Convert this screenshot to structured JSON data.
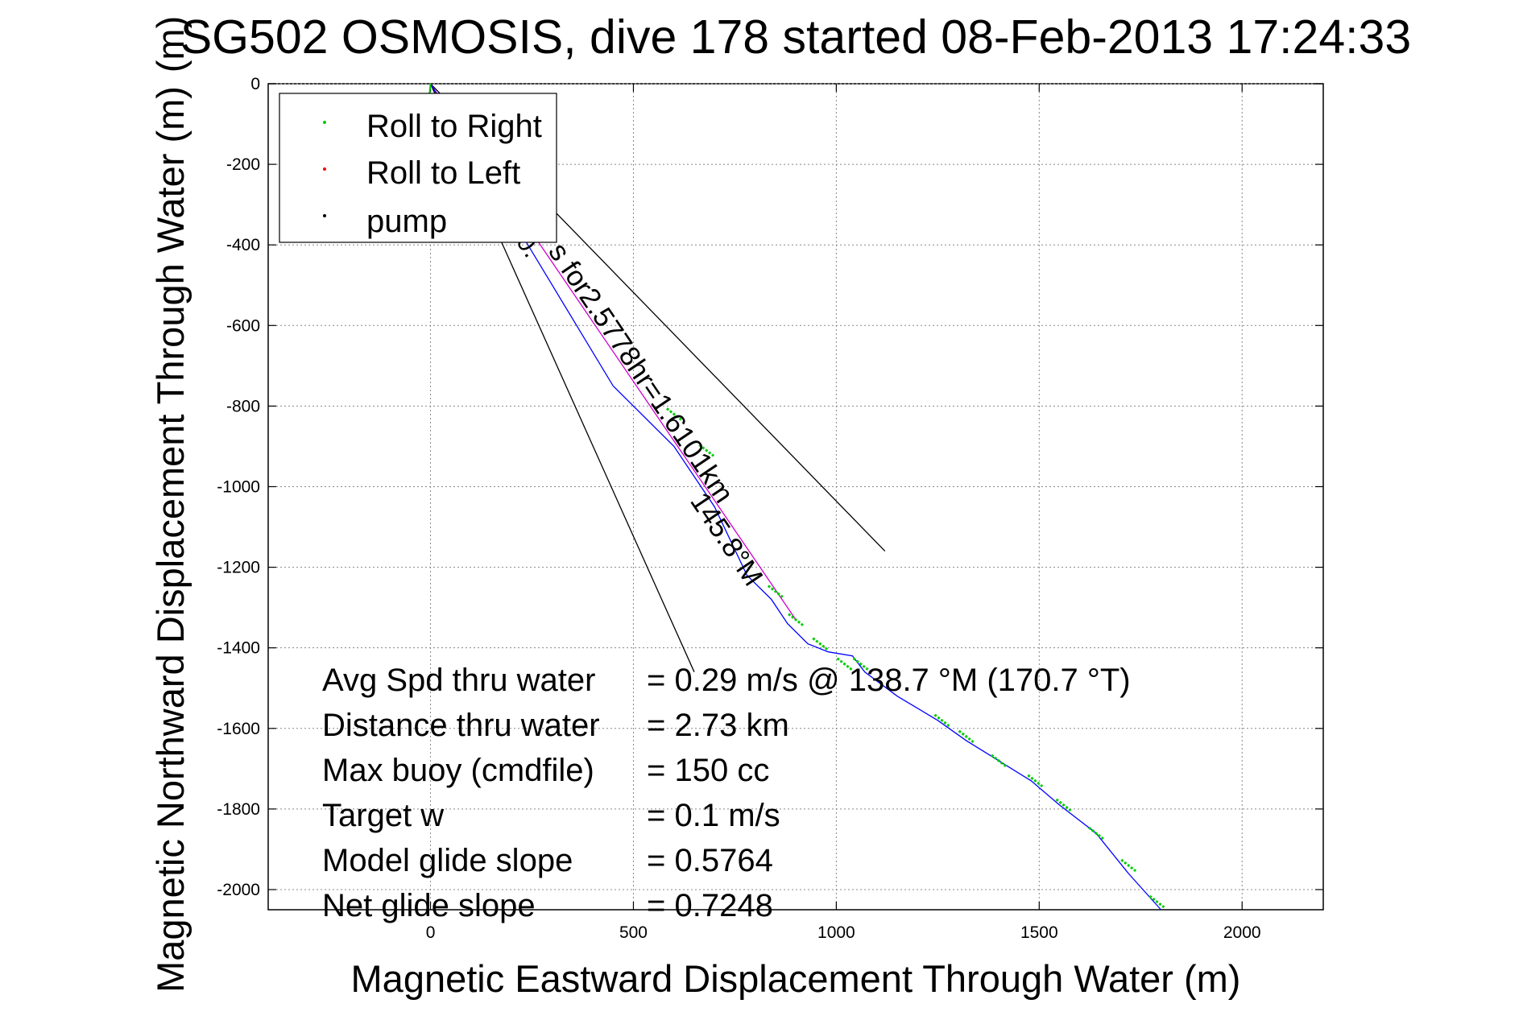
{
  "chart_data": {
    "type": "line",
    "title": "SG502 OSMOSIS, dive 178 started 08-Feb-2013 17:24:33",
    "title_overlap_glyph": "(m)",
    "xlabel": "Magnetic Eastward Displacement Through Water (m)",
    "ylabel": "Magnetic Northward Displacement Through Water (m)",
    "xlim": [
      -400,
      2200
    ],
    "ylim": [
      -2050,
      0
    ],
    "xticks": [
      0,
      500,
      1000,
      1500,
      2000
    ],
    "yticks": [
      0,
      -200,
      -400,
      -600,
      -800,
      -1000,
      -1200,
      -1400,
      -1600,
      -1800,
      -2000
    ],
    "grid": true,
    "legend": {
      "placement": "top-left",
      "entries": [
        {
          "label": "Roll to Right",
          "color": "#00cc00"
        },
        {
          "label": "Roll to Left",
          "color": "#ff0000"
        },
        {
          "label": "pump",
          "color": "#000000"
        }
      ]
    },
    "series": [
      {
        "role": "track",
        "color": "#0000ff",
        "x": [
          0,
          150,
          300,
          450,
          600,
          700,
          780,
          840,
          880,
          930,
          980,
          1040,
          1070,
          1150,
          1250,
          1320,
          1400,
          1480,
          1550,
          1640,
          1720,
          1800
        ],
        "y": [
          0,
          -250,
          -500,
          -750,
          -900,
          -1050,
          -1220,
          -1280,
          -1340,
          -1390,
          -1410,
          -1420,
          -1460,
          -1520,
          -1580,
          -1630,
          -1680,
          -1730,
          -1790,
          -1860,
          -1960,
          -2050
        ]
      },
      {
        "role": "heading",
        "color": "#cc00cc",
        "x": [
          0,
          900
        ],
        "y": [
          0,
          -1330
        ]
      },
      {
        "role": "boundary-upper",
        "color": "#000000",
        "x": [
          0,
          1120
        ],
        "y": [
          0,
          -1160
        ]
      },
      {
        "role": "boundary-lower",
        "color": "#000000",
        "x": [
          0,
          650
        ],
        "y": [
          0,
          -1460
        ]
      }
    ],
    "roll_right_segments_x": [
      600,
      680,
      850,
      900,
      960,
      1020,
      1060,
      1260,
      1320,
      1400,
      1490,
      1560,
      1640,
      1720,
      1790
    ],
    "roll_right_segments_y": [
      -820,
      -910,
      -1260,
      -1330,
      -1390,
      -1440,
      -1440,
      -1580,
      -1620,
      -1680,
      -1730,
      -1790,
      -1860,
      -1940,
      -2030
    ],
    "annotations": {
      "along_line_prefix": "0.",
      "along_line": "s for2.5778hr=1.6101km",
      "heading": "145.8°M"
    },
    "stats": [
      {
        "label": "Avg Spd thru water",
        "value": "=  0.29 m/s @ 138.7 °M (170.7 °T)"
      },
      {
        "label": "Distance thru water",
        "value": "=  2.73 km"
      },
      {
        "label": "Max buoy (cmdfile)",
        "value": "= 150 cc"
      },
      {
        "label": "Target w",
        "value": "= 0.1 m/s"
      },
      {
        "label": "Model glide slope",
        "value": "= 0.5764"
      },
      {
        "label": "Net glide slope",
        "value": "= 0.7248"
      }
    ]
  }
}
